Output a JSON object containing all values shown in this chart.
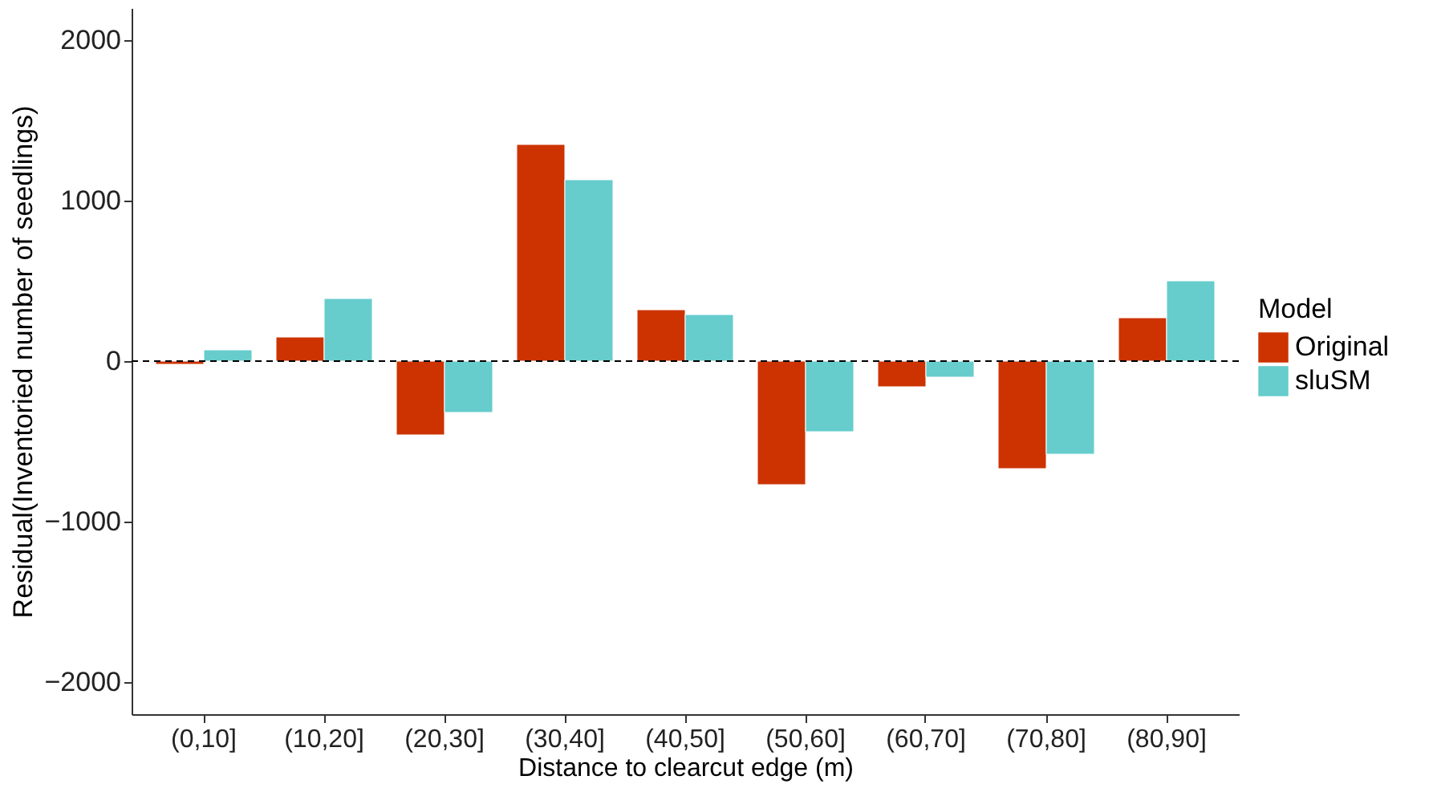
{
  "chart_data": {
    "type": "bar",
    "xlabel": "Distance to clearcut edge (m)",
    "ylabel": "Residual(Inventoried number of seedlings)",
    "legend_title": "Model",
    "categories": [
      "(0,10]",
      "(10,20]",
      "(20,30]",
      "(30,40]",
      "(40,50]",
      "(50,60]",
      "(60,70]",
      "(70,80]",
      "(80,90]"
    ],
    "series": [
      {
        "name": "Original",
        "color": "#cc3300",
        "values": [
          -20,
          150,
          -460,
          1350,
          320,
          -770,
          -160,
          -670,
          270
        ]
      },
      {
        "name": "sluSM",
        "color": "#66cccc",
        "values": [
          70,
          390,
          -320,
          1130,
          290,
          -440,
          -100,
          -580,
          500
        ]
      }
    ],
    "ylim": [
      -2200,
      2200
    ],
    "yticks": [
      -2000,
      -1000,
      0,
      1000,
      2000
    ],
    "grid": false,
    "legend": "right",
    "ref_lines": [
      {
        "axis": "y",
        "value": 0,
        "color": "#000000",
        "line_style": "dashed"
      }
    ]
  }
}
